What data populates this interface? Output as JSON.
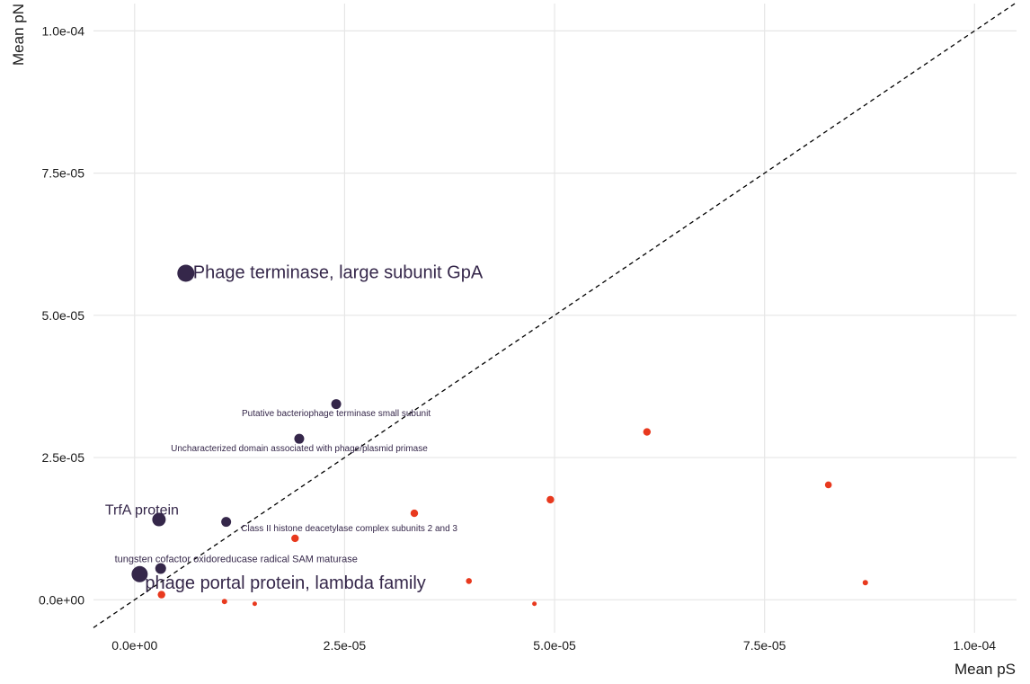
{
  "chart_data": {
    "type": "scatter",
    "title": "",
    "xlabel": "Mean pS",
    "ylabel": "Mean pN",
    "xlim": [
      -4.9e-06,
      0.000105
    ],
    "ylim": [
      -5.8e-06,
      0.0001048
    ],
    "grid": true,
    "legend": "none",
    "reference_line": {
      "type": "y = x",
      "style": "dashed"
    },
    "colors": {
      "labeled": "#35274a",
      "unlabeled": "#e8391e",
      "grid": "#e6e6e6",
      "line": "#000000"
    },
    "x_ticks": [
      {
        "value": 0,
        "label": "0.0e+00"
      },
      {
        "value": 2.5e-05,
        "label": "2.5e-05"
      },
      {
        "value": 5e-05,
        "label": "5.0e-05"
      },
      {
        "value": 7.5e-05,
        "label": "7.5e-05"
      },
      {
        "value": 0.0001,
        "label": "1.0e-04"
      }
    ],
    "y_ticks": [
      {
        "value": 0,
        "label": "0.0e+00"
      },
      {
        "value": 2.5e-05,
        "label": "2.5e-05"
      },
      {
        "value": 5e-05,
        "label": "5.0e-05"
      },
      {
        "value": 7.5e-05,
        "label": "7.5e-05"
      },
      {
        "value": 0.0001,
        "label": "1.0e-04"
      }
    ],
    "points": [
      {
        "x": 6.1e-06,
        "y": 5.74e-05,
        "size": 9.5,
        "group": "labeled",
        "label": "Phage terminase, large subunit GpA",
        "label_size": 20,
        "label_dx": 8,
        "label_dy": 0,
        "anchor": "start"
      },
      {
        "x": 2.4e-05,
        "y": 3.44e-05,
        "size": 5.5,
        "group": "labeled",
        "label": "Putative bacteriophage terminase small subunit",
        "label_size": 10,
        "label_dx": 0,
        "label_dy": 11,
        "anchor": "middle"
      },
      {
        "x": 1.96e-05,
        "y": 2.83e-05,
        "size": 5.5,
        "group": "labeled",
        "label": "Uncharacterized domain associated with phage/plasmid primase",
        "label_size": 10,
        "label_dx": 0,
        "label_dy": 11,
        "anchor": "middle"
      },
      {
        "x": 2.9e-06,
        "y": 1.41e-05,
        "size": 7.5,
        "group": "labeled",
        "label": "TrfA protein",
        "label_size": 16,
        "label_dx": -19,
        "label_dy": -10,
        "anchor": "middle"
      },
      {
        "x": 1.09e-05,
        "y": 1.37e-05,
        "size": 5.5,
        "group": "labeled",
        "label": "Class II histone deacetylase complex subunits 2 and 3",
        "label_size": 10,
        "label_dx": 137,
        "label_dy": 8,
        "anchor": "middle"
      },
      {
        "x": 3.1e-06,
        "y": 5.5e-06,
        "size": 6,
        "group": "labeled",
        "label": "tungsten cofactor oxidoreducase radical SAM maturase",
        "label_size": 11,
        "label_dx": 84,
        "label_dy": -10,
        "anchor": "middle"
      },
      {
        "x": 6e-07,
        "y": 4.5e-06,
        "size": 9,
        "group": "labeled",
        "label": "phage portal protein, lambda family",
        "label_size": 20,
        "label_dx": 6,
        "label_dy": 11,
        "anchor": "start"
      },
      {
        "x": 6.1e-05,
        "y": 2.95e-05,
        "size": 4.2,
        "group": "unlabeled"
      },
      {
        "x": 8.26e-05,
        "y": 2.02e-05,
        "size": 3.8,
        "group": "unlabeled"
      },
      {
        "x": 4.95e-05,
        "y": 1.76e-05,
        "size": 4.2,
        "group": "unlabeled"
      },
      {
        "x": 3.33e-05,
        "y": 1.52e-05,
        "size": 4.2,
        "group": "unlabeled"
      },
      {
        "x": 1.91e-05,
        "y": 1.08e-05,
        "size": 4.2,
        "group": "unlabeled"
      },
      {
        "x": 3.98e-05,
        "y": 3.3e-06,
        "size": 3.3,
        "group": "unlabeled"
      },
      {
        "x": 8.7e-05,
        "y": 3e-06,
        "size": 3.0,
        "group": "unlabeled"
      },
      {
        "x": 3.2e-06,
        "y": 9e-07,
        "size": 4.2,
        "group": "unlabeled"
      },
      {
        "x": 1.07e-05,
        "y": -3e-07,
        "size": 3.0,
        "group": "unlabeled"
      },
      {
        "x": 1.43e-05,
        "y": -7e-07,
        "size": 2.5,
        "group": "unlabeled"
      },
      {
        "x": 4.76e-05,
        "y": -7e-07,
        "size": 2.5,
        "group": "unlabeled"
      }
    ]
  }
}
